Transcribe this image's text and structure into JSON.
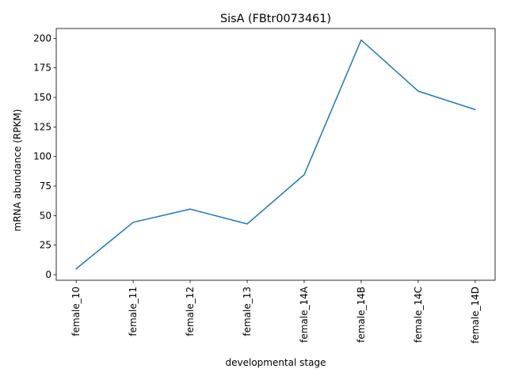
{
  "chart_data": {
    "type": "line",
    "title": "SisA (FBtr0073461)",
    "xlabel": "developmental stage",
    "ylabel": "mRNA abundance (RPKM)",
    "categories": [
      "female_10",
      "female_11",
      "female_12",
      "female_13",
      "female_14A",
      "female_14B",
      "female_14C",
      "female_14D"
    ],
    "series": [
      {
        "values": [
          5.0,
          44.3,
          55.5,
          42.9,
          84.6,
          198.6,
          155.3,
          139.7
        ],
        "color": "#1f77b4"
      }
    ],
    "ylim": [
      -4.7,
      208.3
    ],
    "yticks": [
      0,
      25,
      50,
      75,
      100,
      125,
      150,
      175,
      200
    ],
    "grid": false,
    "legend": "none"
  }
}
